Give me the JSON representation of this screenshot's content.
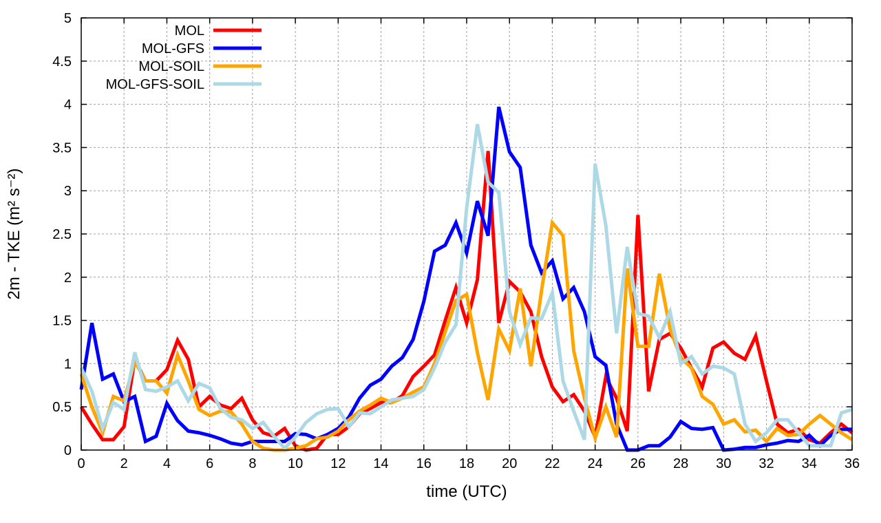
{
  "chart_data": {
    "type": "line",
    "title": "",
    "xlabel": "time (UTC)",
    "ylabel": "2m - TKE (m² s⁻²)",
    "xlim": [
      0,
      36
    ],
    "ylim": [
      0,
      5
    ],
    "xticks": [
      0,
      2,
      4,
      6,
      8,
      10,
      12,
      14,
      16,
      18,
      20,
      22,
      24,
      26,
      28,
      30,
      32,
      34,
      36
    ],
    "yticks": [
      "0",
      "0.5",
      "1",
      "1.5",
      "2",
      "2.5",
      "3",
      "3.5",
      "4",
      "4.5",
      "5"
    ],
    "grid": true,
    "legend_position": "top-left",
    "x_step": 0.5,
    "series": [
      {
        "name": "MOL",
        "color": "#ff0000",
        "values": [
          0.5,
          0.3,
          0.12,
          0.12,
          0.27,
          1.05,
          0.8,
          0.8,
          0.93,
          1.27,
          1.05,
          0.5,
          0.62,
          0.52,
          0.48,
          0.6,
          0.35,
          0.2,
          0.16,
          0.25,
          0.05,
          0,
          0.02,
          0.18,
          0.18,
          0.27,
          0.42,
          0.48,
          0.55,
          0.55,
          0.63,
          0.85,
          0.97,
          1.1,
          1.5,
          1.88,
          1.47,
          1.97,
          3.46,
          1.47,
          1.95,
          1.83,
          1.6,
          1.08,
          0.73,
          0.56,
          0.64,
          0.45,
          0.15,
          0.85,
          0.6,
          0.22,
          2.72,
          0.68,
          1.28,
          1.35,
          1.18,
          0.95,
          0.73,
          1.18,
          1.25,
          1.12,
          1.05,
          1.32,
          0.8,
          0.3,
          0.2,
          0.24,
          0.12,
          0.08,
          0.2,
          0.3,
          0.2
        ]
      },
      {
        "name": "MOL-GFS",
        "color": "#0000ff",
        "values": [
          0.7,
          1.47,
          0.82,
          0.88,
          0.56,
          0.62,
          0.1,
          0.16,
          0.54,
          0.34,
          0.22,
          0.2,
          0.17,
          0.13,
          0.08,
          0.06,
          0.1,
          0.1,
          0.1,
          0.1,
          0.19,
          0.18,
          0.13,
          0.18,
          0.25,
          0.38,
          0.6,
          0.75,
          0.82,
          0.97,
          1.07,
          1.28,
          1.72,
          2.3,
          2.37,
          2.63,
          2.28,
          2.88,
          2.48,
          3.97,
          3.45,
          3.27,
          2.37,
          2.05,
          2.19,
          1.75,
          1.88,
          1.6,
          1.08,
          0.98,
          0.3,
          0,
          0,
          0.05,
          0.05,
          0.15,
          0.33,
          0.25,
          0.24,
          0.26,
          0,
          0.01,
          0.03,
          0.03,
          0.06,
          0.08,
          0.11,
          0.1,
          0.17,
          0.05,
          0.17,
          0.24,
          0.24
        ]
      },
      {
        "name": "MOL-SOIL",
        "color": "#ffa500",
        "values": [
          0.88,
          0.5,
          0.2,
          0.62,
          0.57,
          1.03,
          0.8,
          0.8,
          0.66,
          1.1,
          0.8,
          0.47,
          0.4,
          0.45,
          0.44,
          0.3,
          0.1,
          0.02,
          0,
          0,
          0.02,
          0.05,
          0.13,
          0.15,
          0.22,
          0.35,
          0.45,
          0.52,
          0.6,
          0.55,
          0.6,
          0.67,
          0.73,
          1.0,
          1.37,
          1.73,
          1.8,
          1.13,
          0.58,
          1.4,
          1.15,
          1.87,
          0.97,
          1.85,
          2.63,
          2.48,
          1.15,
          0.6,
          0.14,
          0.5,
          0.15,
          2.1,
          1.2,
          1.2,
          2.04,
          1.4,
          1.07,
          0.95,
          0.62,
          0.53,
          0.3,
          0.35,
          0.21,
          0.23,
          0.1,
          0.25,
          0.17,
          0.18,
          0.3,
          0.4,
          0.3,
          0.2,
          0.12
        ]
      },
      {
        "name": "MOL-GFS-SOIL",
        "color": "#add8e6",
        "values": [
          0.95,
          0.68,
          0.25,
          0.55,
          0.47,
          1.13,
          0.7,
          0.68,
          0.73,
          0.8,
          0.57,
          0.77,
          0.72,
          0.48,
          0.38,
          0.35,
          0.25,
          0.32,
          0.16,
          0.02,
          0.15,
          0.32,
          0.42,
          0.47,
          0.48,
          0.27,
          0.43,
          0.42,
          0.5,
          0.58,
          0.6,
          0.62,
          0.7,
          0.95,
          1.25,
          1.45,
          2.8,
          3.77,
          3.1,
          2.98,
          1.6,
          1.22,
          1.53,
          1.52,
          1.82,
          0.8,
          0.45,
          0.12,
          3.31,
          2.6,
          1.35,
          2.35,
          1.58,
          1.55,
          1.3,
          1.6,
          1.0,
          1.08,
          0.88,
          0.97,
          0.95,
          0.88,
          0.3,
          0.1,
          0.2,
          0.35,
          0.35,
          0.2,
          0.05,
          0.05,
          0.05,
          0.43,
          0.47
        ]
      }
    ]
  }
}
